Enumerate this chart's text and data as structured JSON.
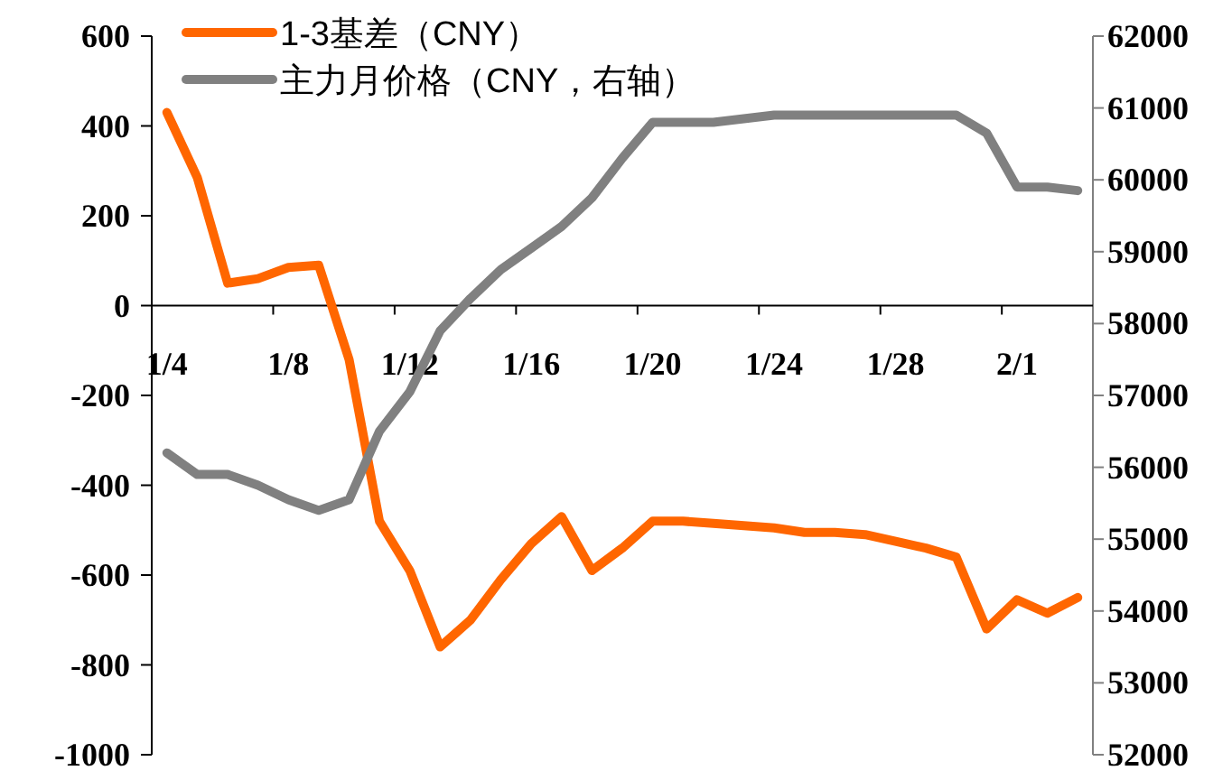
{
  "chart_data": {
    "type": "line",
    "categories": [
      "1/4",
      null,
      null,
      null,
      "1/8",
      null,
      null,
      null,
      "1/12",
      null,
      null,
      null,
      "1/16",
      null,
      null,
      null,
      "1/20",
      null,
      null,
      null,
      "1/24",
      null,
      null,
      null,
      "1/28",
      null,
      null,
      null,
      "2/1",
      null,
      null
    ],
    "series": [
      {
        "name": "1-3基差（CNY）",
        "color": "#ff6600",
        "values": [
          430,
          285,
          50,
          60,
          85,
          90,
          -120,
          -480,
          -590,
          -760,
          -700,
          -610,
          -530,
          -470,
          -590,
          -540,
          -480,
          -480,
          -485,
          -490,
          -495,
          -505,
          -505,
          -510,
          -525,
          -540,
          -560,
          -720,
          -655,
          -685,
          -650
        ]
      },
      {
        "name": "主力月价格（CNY，右轴）",
        "color": "#808080",
        "axis": "y2",
        "values": [
          56200,
          55900,
          55900,
          55750,
          55550,
          55400,
          55550,
          56500,
          57050,
          57900,
          58350,
          58750,
          59050,
          59350,
          59750,
          60300,
          60800,
          60800,
          60800,
          60850,
          60900,
          60900,
          60900,
          60900,
          60900,
          60900,
          60900,
          60650,
          59900,
          59900,
          59850
        ]
      }
    ],
    "ylim": [
      -1000,
      600
    ],
    "yticks": [
      -1000,
      -800,
      -600,
      -400,
      -200,
      0,
      200,
      400,
      600
    ],
    "y2lim": [
      52000,
      62000
    ],
    "y2ticks": [
      52000,
      53000,
      54000,
      55000,
      56000,
      57000,
      58000,
      59000,
      60000,
      61000,
      62000
    ],
    "legend": "top left"
  }
}
